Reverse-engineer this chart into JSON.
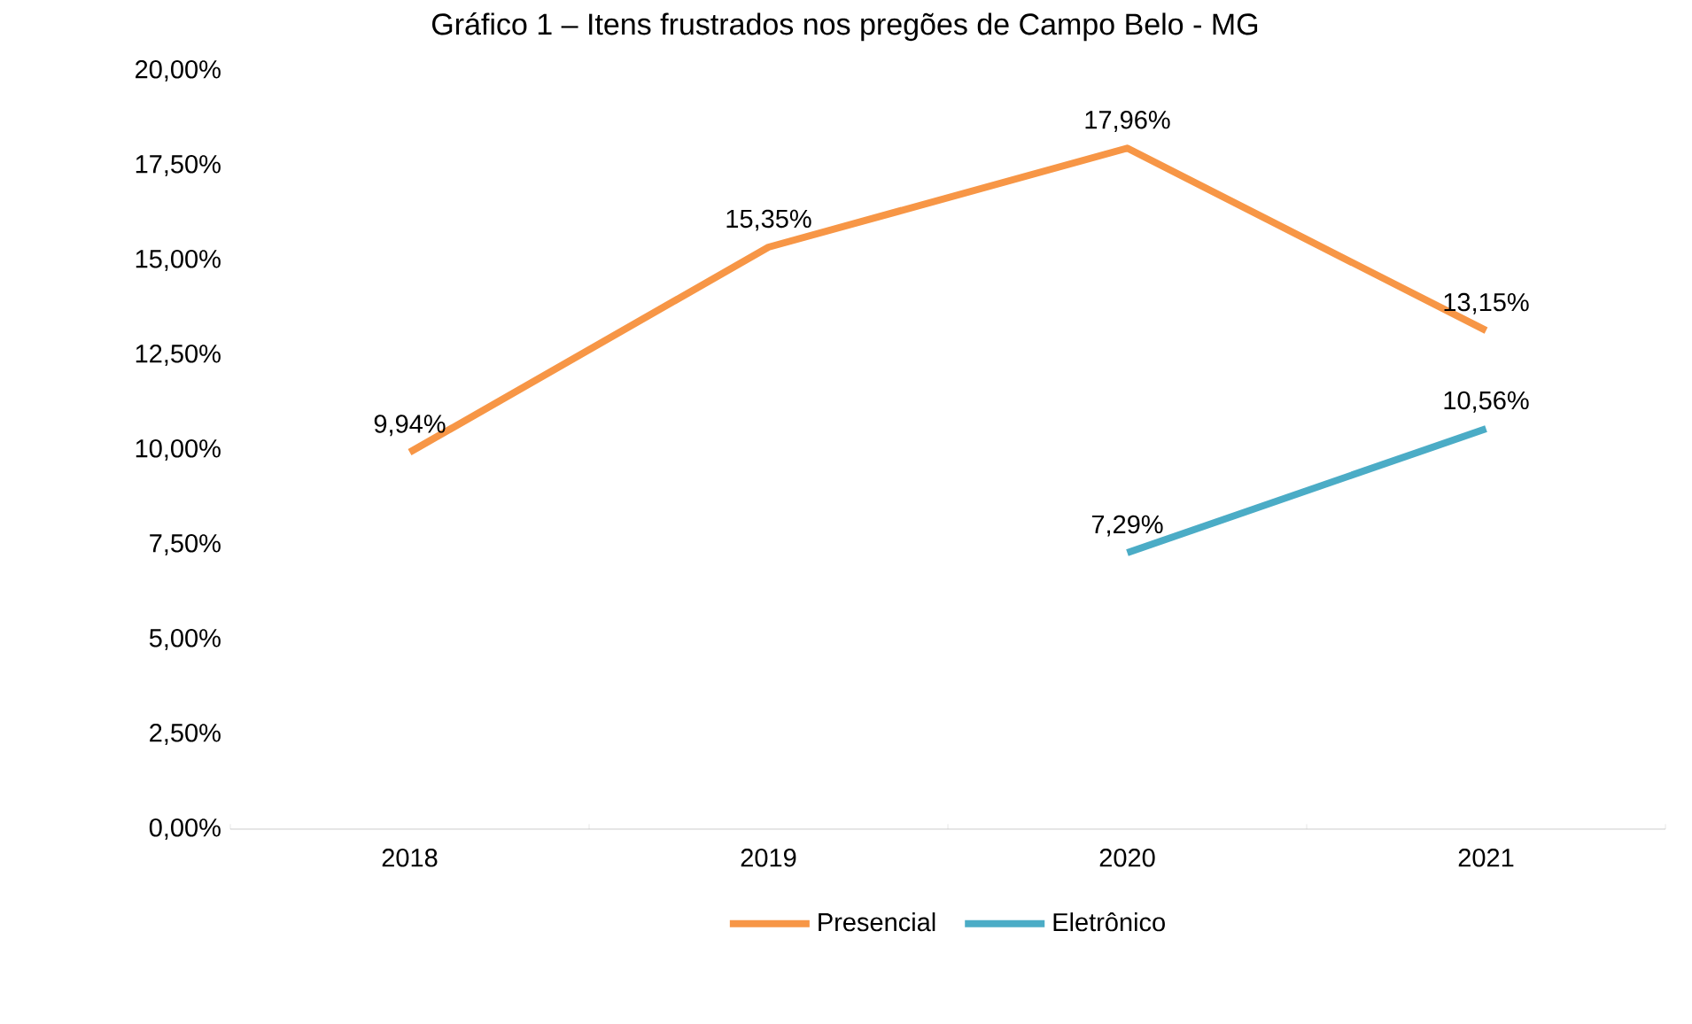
{
  "chart_data": {
    "type": "line",
    "title": "Gráfico 1 – Itens frustrados nos pregões de Campo Belo - MG",
    "categories": [
      "2018",
      "2019",
      "2020",
      "2021"
    ],
    "series": [
      {
        "name": "Presencial",
        "color": "#f79646",
        "values": [
          9.94,
          15.35,
          17.96,
          13.15
        ],
        "value_labels": [
          "9,94%",
          "15,35%",
          "17,96%",
          "13,15%"
        ]
      },
      {
        "name": "Eletrônico",
        "color": "#4bacc6",
        "values": [
          null,
          null,
          7.29,
          10.56
        ],
        "value_labels": [
          null,
          null,
          "7,29%",
          "10,56%"
        ]
      }
    ],
    "ylim": [
      0,
      20
    ],
    "yticks": [
      {
        "value": 0,
        "label": "0,00%"
      },
      {
        "value": 2.5,
        "label": "2,50%"
      },
      {
        "value": 5,
        "label": "5,00%"
      },
      {
        "value": 7.5,
        "label": "7,50%"
      },
      {
        "value": 10,
        "label": "10,00%"
      },
      {
        "value": 12.5,
        "label": "12,50%"
      },
      {
        "value": 15,
        "label": "15,00%"
      },
      {
        "value": 17.5,
        "label": "17,50%"
      },
      {
        "value": 20,
        "label": "20,00%"
      }
    ],
    "legend": "bottom"
  }
}
